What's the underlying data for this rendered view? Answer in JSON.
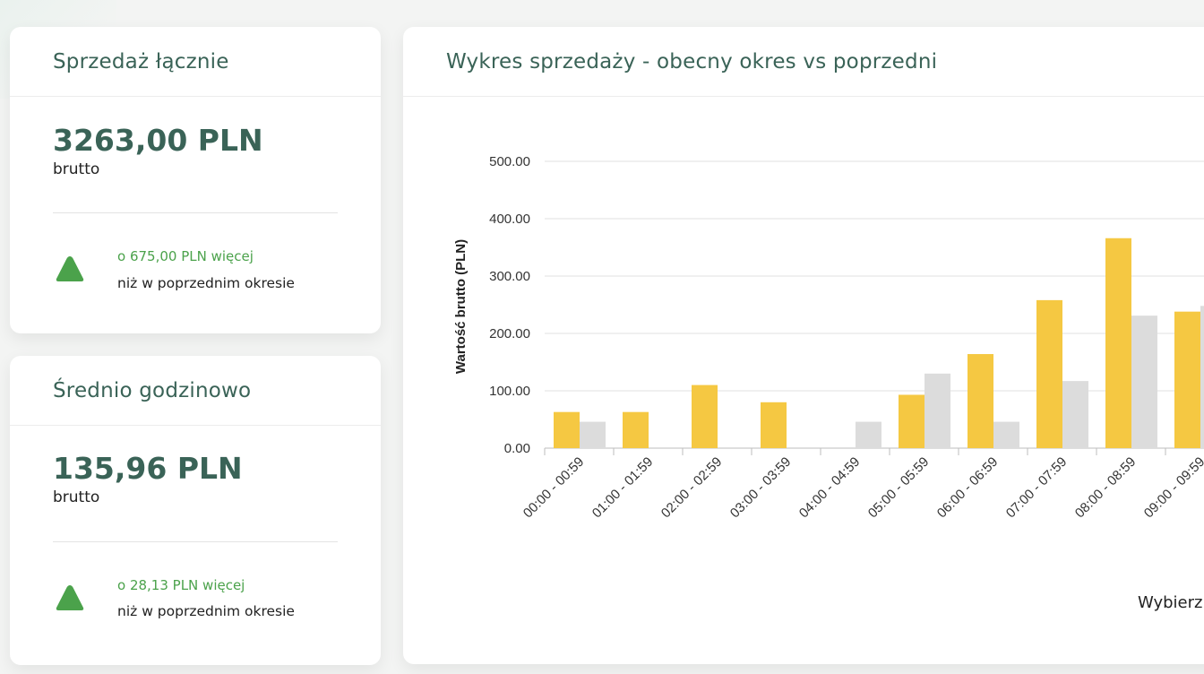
{
  "cards": [
    {
      "title": "Sprzedaż łącznie",
      "value": "3263,00 PLN",
      "value_label": "brutto",
      "trend_direction": "up",
      "trend_icon": "triangle-up-icon",
      "trend_text": "o 675,00 PLN więcej",
      "trend_subtext": "niż w poprzednim okresie"
    },
    {
      "title": "Średnio godzinowo",
      "value": "135,96 PLN",
      "value_label": "brutto",
      "trend_direction": "up",
      "trend_icon": "triangle-up-icon",
      "trend_text": "o 28,13 PLN więcej",
      "trend_subtext": "niż w poprzednim okresie"
    }
  ],
  "chart_panel": {
    "title": "Wykres sprzedaży - obecny okres vs poprzedni",
    "footer_text": "Wybierz"
  },
  "colors": {
    "accent_text": "#3a6357",
    "positive": "#4ba24b",
    "current_period": "#f5c842",
    "previous_period": "#dcdcdc"
  },
  "chart_data": {
    "type": "bar",
    "ylabel": "Wartość brutto (PLN)",
    "xlabel": "",
    "ylim": [
      0,
      500
    ],
    "yticks": [
      "0.00",
      "100.00",
      "200.00",
      "300.00",
      "400.00",
      "500.00"
    ],
    "grid": true,
    "categories": [
      "00:00 - 00:59",
      "01:00 - 01:59",
      "02:00 - 02:59",
      "03:00 - 03:59",
      "04:00 - 04:59",
      "05:00 - 05:59",
      "06:00 - 06:59",
      "07:00 - 07:59",
      "08:00 - 08:59",
      "09:00 - 09:59"
    ],
    "series": [
      {
        "color": "#f5c842",
        "values": [
          63,
          63,
          110,
          80,
          0,
          93,
          164,
          258,
          366,
          238
        ]
      },
      {
        "color": "#dcdcdc",
        "values": [
          46,
          0,
          0,
          0,
          46,
          130,
          46,
          117,
          231,
          248
        ]
      }
    ]
  }
}
